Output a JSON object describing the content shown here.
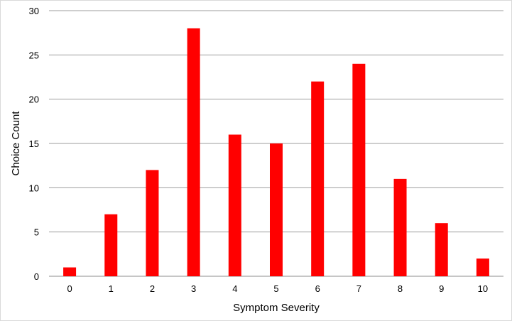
{
  "chart_data": {
    "type": "bar",
    "title": "",
    "xlabel": "Symptom Severity",
    "ylabel": "Choice Count",
    "categories": [
      "0",
      "1",
      "2",
      "3",
      "4",
      "5",
      "6",
      "7",
      "8",
      "9",
      "10"
    ],
    "series": [
      {
        "values": [
          1,
          7,
          12,
          28,
          16,
          15,
          22,
          24,
          11,
          6,
          2
        ],
        "color": "#ff0000"
      }
    ],
    "ylim": [
      0,
      30
    ],
    "yticks": [
      "0",
      "5",
      "10",
      "15",
      "20",
      "25",
      "30"
    ],
    "grid": true,
    "legend": "none"
  }
}
